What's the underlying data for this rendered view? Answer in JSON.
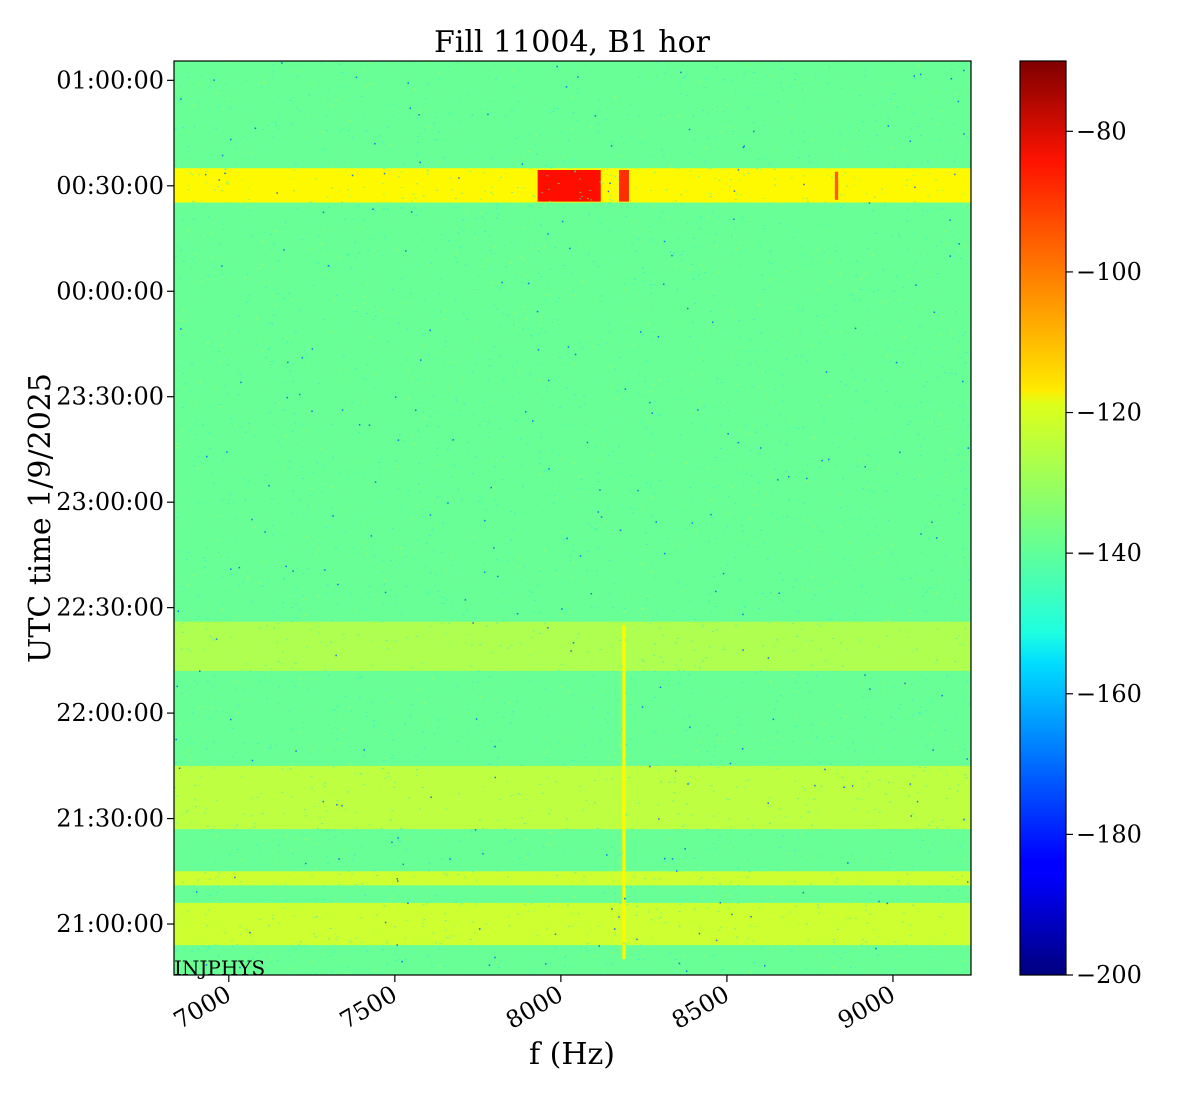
{
  "chart_data": {
    "type": "heatmap",
    "title": "Fill 11004, B1 hor",
    "xlabel": "f (Hz)",
    "ylabel": "UTC time 1/9/2025",
    "xlim": [
      6835,
      9235
    ],
    "x_ticks": [
      7000,
      7500,
      8000,
      8500,
      9000
    ],
    "x_tick_labels": [
      "7000",
      "7500",
      "8000",
      "8500",
      "9000"
    ],
    "ylim": [
      "2025-01-09 20:45:30",
      "2025-01-10 01:05:30"
    ],
    "y_ticks": [
      "21:00:00",
      "21:30:00",
      "22:00:00",
      "22:30:00",
      "23:00:00",
      "23:30:00",
      "00:00:00",
      "00:30:00",
      "01:00:00"
    ],
    "colormap": "jet",
    "clim": [
      -200,
      -70
    ],
    "colorbar_ticks": [
      -80,
      -100,
      -120,
      -140,
      -160,
      -180,
      -200
    ],
    "colorbar_tick_labels": [
      "−80",
      "−100",
      "−120",
      "−140",
      "−160",
      "−180",
      "−200"
    ],
    "background_level": -138,
    "bands": [
      {
        "t_start": "00:25:15",
        "t_end": "00:35:00",
        "level": -118
      },
      {
        "t_start": "22:12:00",
        "t_end": "22:26:00",
        "level": -129
      },
      {
        "t_start": "21:27:00",
        "t_end": "21:45:00",
        "level": -127
      },
      {
        "t_start": "21:11:00",
        "t_end": "21:15:00",
        "level": -125
      },
      {
        "t_start": "20:54:00",
        "t_end": "21:06:00",
        "level": -125
      }
    ],
    "hot_spots": [
      {
        "f_start": 7930,
        "f_end": 8120,
        "t_start": "00:25:30",
        "t_end": "00:34:30",
        "level": -88
      },
      {
        "f_start": 8175,
        "f_end": 8205,
        "t_start": "00:25:30",
        "t_end": "00:34:30",
        "level": -92
      },
      {
        "f_start": 8825,
        "f_end": 8835,
        "t_start": "00:26:00",
        "t_end": "00:34:00",
        "level": -98
      },
      {
        "f_start": 8185,
        "f_end": 8195,
        "t_start": "20:50:00",
        "t_end": "22:25:00",
        "level": -118
      }
    ],
    "annotation": "INJPHYS"
  }
}
